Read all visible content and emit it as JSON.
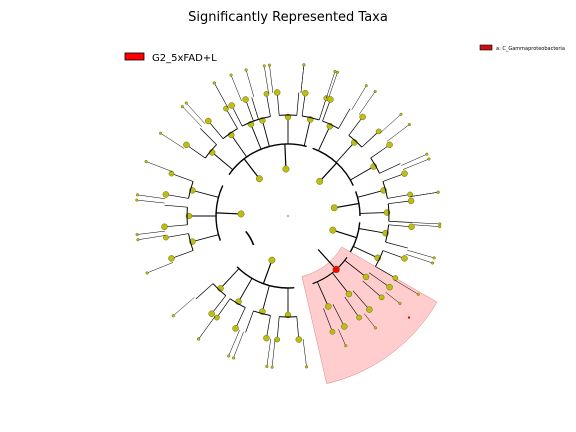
{
  "figure": {
    "title": "Significantly Represented Taxa",
    "legend_left": {
      "label": "G2_5xFAD+L",
      "color": "#ff0000"
    },
    "legend_right": {
      "label": "a: C_Gammaproteobacteria",
      "color": "#cc1111"
    }
  },
  "colors": {
    "node_fill": "#bdbd14",
    "node_stroke": "#6a6a10",
    "highlight_node": "#ff0000",
    "clade_fill": "#ff9b9b",
    "branch": "#000000"
  },
  "highlight": {
    "label": "a",
    "clade": "C_Gammaproteobacteria",
    "group": "G2_5xFAD+L"
  }
}
